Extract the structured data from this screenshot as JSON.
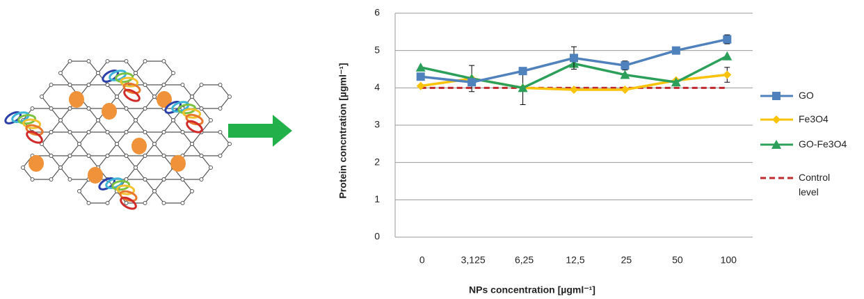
{
  "chart_data": {
    "type": "line",
    "xlabel": "NPs concentration [µgml⁻¹]",
    "ylabel": "Protein concntration  [µgml⁻¹]",
    "categories": [
      "0",
      "3,125",
      "6,25",
      "12,5",
      "25",
      "50",
      "100"
    ],
    "ylim": [
      0,
      6
    ],
    "yticks": [
      0,
      1,
      2,
      3,
      4,
      5,
      6
    ],
    "grid": true,
    "legend": "right",
    "series": [
      {
        "name": "GO",
        "color": "#4f81bd",
        "marker": "square",
        "values": [
          4.3,
          4.15,
          4.45,
          4.8,
          4.6,
          5.0,
          5.3
        ],
        "errors": [
          null,
          null,
          null,
          0.3,
          0.12,
          null,
          0.12
        ]
      },
      {
        "name": "Fe3O4",
        "color": "#f9c20b",
        "marker": "diamond",
        "values": [
          4.05,
          4.25,
          4.0,
          3.95,
          3.95,
          4.2,
          4.35
        ],
        "errors": [
          null,
          null,
          null,
          null,
          null,
          null,
          0.2
        ]
      },
      {
        "name": "GO-Fe3O4",
        "color": "#2ca05a",
        "marker": "triangle",
        "values": [
          4.55,
          4.25,
          4.0,
          4.65,
          4.35,
          4.15,
          4.85
        ],
        "errors": [
          null,
          0.35,
          0.45,
          null,
          null,
          null,
          null
        ]
      },
      {
        "name": "Control level",
        "color": "#c0282d",
        "marker": "none",
        "dashed": true,
        "values": [
          4.0,
          4.0,
          4.0,
          4.0,
          4.0,
          4.0,
          4.0
        ]
      }
    ]
  }
}
